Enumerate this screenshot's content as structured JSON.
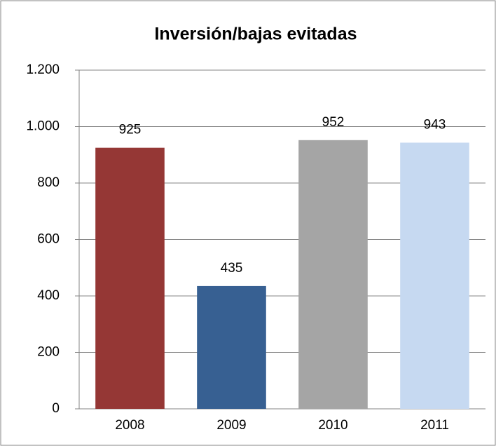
{
  "chart_data": {
    "type": "bar",
    "title": "Inversión/bajas evitadas",
    "categories": [
      "2008",
      "2009",
      "2010",
      "2011"
    ],
    "values": [
      925,
      435,
      952,
      943
    ],
    "colors": [
      "#953735",
      "#376092",
      "#a5a5a5",
      "#c6d9f1"
    ],
    "ylim": [
      0,
      1200
    ],
    "yticks": [
      0,
      200,
      400,
      600,
      800,
      {
        "value": 1000,
        "label": "1.000"
      },
      {
        "value": 1200,
        "label": "1.200"
      }
    ],
    "grid": true
  }
}
